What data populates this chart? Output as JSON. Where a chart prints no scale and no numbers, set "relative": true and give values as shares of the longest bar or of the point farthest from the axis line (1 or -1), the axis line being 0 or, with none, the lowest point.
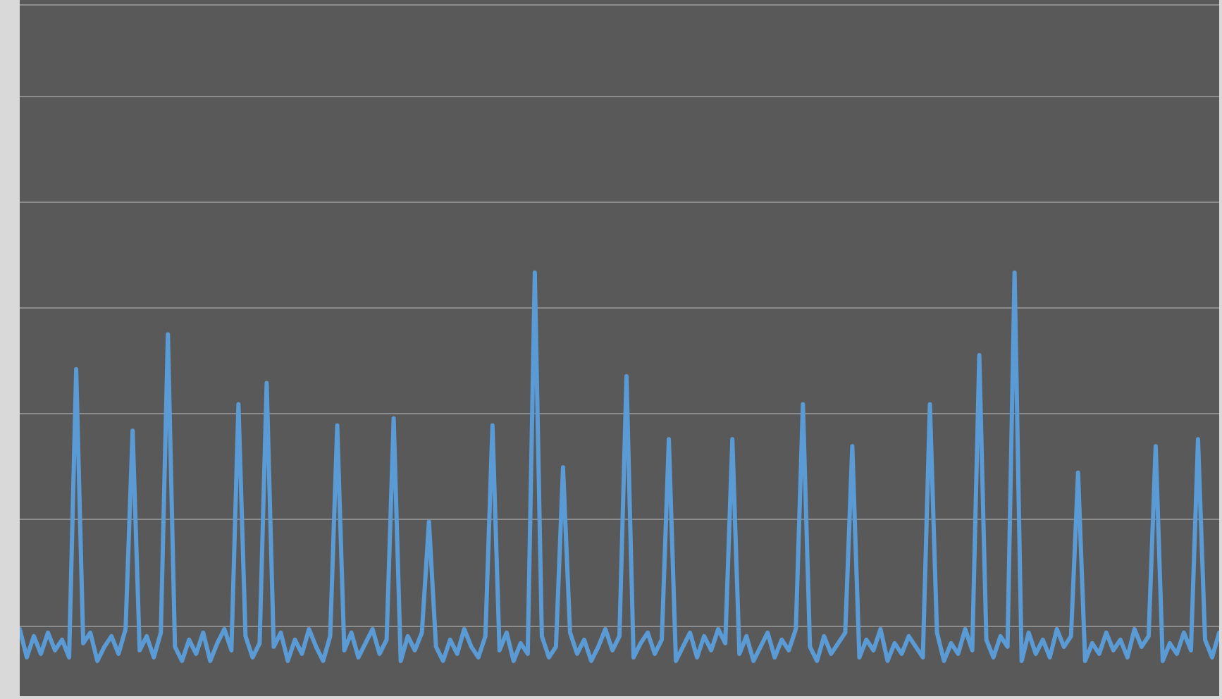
{
  "chart_data": {
    "type": "line",
    "relative": true,
    "grid": "y",
    "line_style": "solid",
    "categories": [
      null,
      null,
      null,
      null,
      null,
      null,
      null,
      null,
      null,
      null,
      null,
      null,
      null,
      null,
      null,
      null,
      null,
      null,
      null,
      null,
      null,
      null,
      null,
      null,
      null,
      null,
      null,
      null,
      null,
      null,
      null,
      null,
      null,
      null,
      null,
      null,
      null,
      null,
      null,
      null,
      null,
      null,
      null,
      null,
      null,
      null,
      null,
      null,
      null,
      null,
      null,
      null,
      null,
      null,
      null,
      null,
      null,
      null,
      null,
      null,
      null,
      null,
      null,
      null,
      null,
      null,
      null,
      null,
      null,
      null,
      null,
      null,
      null,
      null,
      null,
      null,
      null,
      null,
      null,
      null,
      null,
      null,
      null,
      null,
      null,
      null,
      null,
      null,
      null,
      null,
      null,
      null,
      null,
      null,
      null,
      null,
      null,
      null,
      null,
      null,
      null,
      null,
      null,
      null,
      null,
      null,
      null,
      null,
      null,
      null,
      null,
      null,
      null,
      null,
      null,
      null,
      null,
      null,
      null,
      null,
      null,
      null,
      null,
      null,
      null,
      null,
      null,
      null,
      null,
      null,
      null,
      null,
      null,
      null,
      null,
      null,
      null,
      null,
      null,
      null,
      null,
      null,
      null,
      null,
      null,
      null,
      null,
      null,
      null,
      null,
      null,
      null,
      null,
      null,
      null,
      null,
      null,
      null,
      null,
      null,
      null,
      null,
      null,
      null,
      null,
      null,
      null,
      null,
      null,
      null,
      null
    ],
    "series": [
      {
        "color": "#5b9bd5",
        "values": [
          -0.01,
          -0.09,
          -0.03,
          -0.08,
          -0.02,
          -0.07,
          -0.04,
          -0.09,
          0.726,
          -0.05,
          -0.02,
          -0.1,
          -0.06,
          -0.03,
          -0.08,
          -0.01,
          0.552,
          -0.07,
          -0.03,
          -0.09,
          -0.02,
          0.825,
          -0.06,
          -0.1,
          -0.04,
          -0.08,
          -0.02,
          -0.1,
          -0.05,
          -0.01,
          -0.07,
          0.627,
          -0.03,
          -0.09,
          -0.05,
          0.687,
          -0.06,
          -0.02,
          -0.1,
          -0.04,
          -0.08,
          -0.01,
          -0.06,
          -0.1,
          -0.03,
          0.567,
          -0.07,
          -0.02,
          -0.09,
          -0.05,
          -0.01,
          -0.08,
          -0.04,
          0.587,
          -0.1,
          -0.03,
          -0.07,
          -0.02,
          0.294,
          -0.06,
          -0.1,
          -0.04,
          -0.08,
          -0.01,
          -0.06,
          -0.09,
          -0.03,
          0.567,
          -0.07,
          -0.02,
          -0.1,
          -0.05,
          -0.08,
          1,
          -0.03,
          -0.09,
          -0.06,
          0.448,
          -0.02,
          -0.08,
          -0.04,
          -0.1,
          -0.06,
          -0.01,
          -0.07,
          -0.03,
          0.706,
          -0.09,
          -0.05,
          -0.02,
          -0.08,
          -0.04,
          0.528,
          -0.1,
          -0.06,
          -0.02,
          -0.09,
          -0.03,
          -0.07,
          -0.01,
          -0.05,
          0.528,
          -0.08,
          -0.03,
          -0.1,
          -0.06,
          -0.02,
          -0.09,
          -0.04,
          -0.07,
          -0.01,
          0.627,
          -0.06,
          -0.1,
          -0.03,
          -0.08,
          -0.05,
          -0.02,
          0.508,
          -0.09,
          -0.04,
          -0.07,
          -0.01,
          -0.1,
          -0.05,
          -0.08,
          -0.03,
          -0.06,
          -0.09,
          0.627,
          -0.02,
          -0.1,
          -0.05,
          -0.08,
          -0.01,
          -0.07,
          0.766,
          -0.04,
          -0.09,
          -0.03,
          -0.06,
          1,
          -0.1,
          -0.02,
          -0.08,
          -0.04,
          -0.09,
          -0.01,
          -0.06,
          -0.03,
          0.433,
          -0.1,
          -0.05,
          -0.08,
          -0.02,
          -0.07,
          -0.04,
          -0.09,
          -0.01,
          -0.06,
          -0.03,
          0.508,
          -0.1,
          -0.05,
          -0.08,
          -0.02,
          -0.07,
          0.528,
          -0.04,
          -0.09,
          -0.02
        ]
      }
    ]
  }
}
